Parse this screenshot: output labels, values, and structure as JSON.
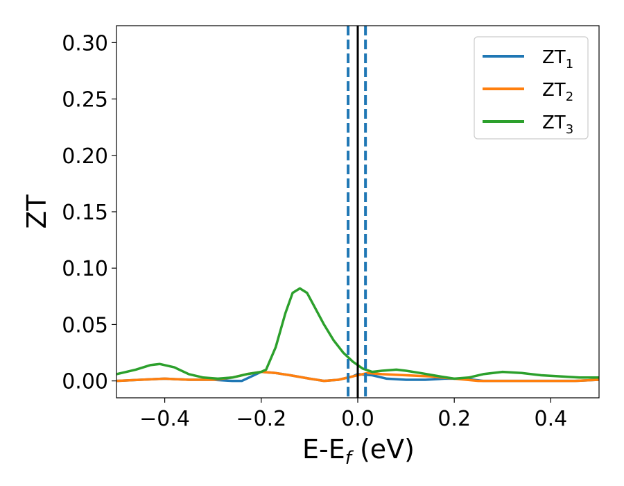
{
  "chart_data": {
    "type": "line",
    "xlabel_parts": {
      "main": "E-E",
      "sub": "f",
      "tail": " (eV)"
    },
    "ylabel": "ZT",
    "xlim": [
      -0.5,
      0.5
    ],
    "ylim": [
      -0.015,
      0.315
    ],
    "xticks": [
      -0.4,
      -0.2,
      0.0,
      0.2,
      0.4
    ],
    "xtick_labels": [
      "−0.4",
      "−0.2",
      "0.0",
      "0.2",
      "0.4"
    ],
    "yticks": [
      0.0,
      0.05,
      0.1,
      0.15,
      0.2,
      0.25,
      0.3
    ],
    "ytick_labels": [
      "0.00",
      "0.05",
      "0.10",
      "0.15",
      "0.20",
      "0.25",
      "0.30"
    ],
    "grid": false,
    "legend_placement": "top-right",
    "reference_lines": [
      {
        "x": -0.02,
        "style": "dashed",
        "color": "#1f77b4"
      },
      {
        "x": 0.0,
        "style": "solid",
        "color": "#000000"
      },
      {
        "x": 0.016,
        "style": "dashed",
        "color": "#1f77b4"
      }
    ],
    "series": [
      {
        "name": "ZT",
        "sub": "1",
        "color": "#1f77b4",
        "points": [
          [
            -0.5,
            0.0
          ],
          [
            -0.45,
            0.001
          ],
          [
            -0.4,
            0.002
          ],
          [
            -0.35,
            0.001
          ],
          [
            -0.3,
            0.001
          ],
          [
            -0.26,
            0.0
          ],
          [
            -0.24,
            0.0
          ],
          [
            -0.22,
            0.004
          ],
          [
            -0.2,
            0.008
          ],
          [
            -0.17,
            0.007
          ],
          [
            -0.14,
            0.005
          ],
          [
            -0.1,
            0.002
          ],
          [
            -0.07,
            0.0
          ],
          [
            -0.04,
            0.001
          ],
          [
            -0.01,
            0.004
          ],
          [
            0.0,
            0.006
          ],
          [
            0.03,
            0.005
          ],
          [
            0.06,
            0.002
          ],
          [
            0.1,
            0.001
          ],
          [
            0.14,
            0.001
          ],
          [
            0.18,
            0.002
          ],
          [
            0.22,
            0.002
          ],
          [
            0.26,
            0.0
          ],
          [
            0.3,
            0.0
          ],
          [
            0.35,
            0.0
          ],
          [
            0.4,
            0.0
          ],
          [
            0.45,
            0.0
          ],
          [
            0.5,
            0.001
          ]
        ]
      },
      {
        "name": "ZT",
        "sub": "2",
        "color": "#ff7f0e",
        "points": [
          [
            -0.5,
            0.0
          ],
          [
            -0.45,
            0.001
          ],
          [
            -0.4,
            0.002
          ],
          [
            -0.35,
            0.001
          ],
          [
            -0.3,
            0.001
          ],
          [
            -0.26,
            0.003
          ],
          [
            -0.23,
            0.006
          ],
          [
            -0.2,
            0.008
          ],
          [
            -0.17,
            0.007
          ],
          [
            -0.14,
            0.005
          ],
          [
            -0.1,
            0.002
          ],
          [
            -0.07,
            0.0
          ],
          [
            -0.04,
            0.001
          ],
          [
            -0.01,
            0.004
          ],
          [
            0.02,
            0.007
          ],
          [
            0.05,
            0.006
          ],
          [
            0.1,
            0.005
          ],
          [
            0.15,
            0.004
          ],
          [
            0.2,
            0.002
          ],
          [
            0.25,
            0.0
          ],
          [
            0.3,
            0.0
          ],
          [
            0.35,
            0.0
          ],
          [
            0.4,
            0.0
          ],
          [
            0.45,
            0.0
          ],
          [
            0.5,
            0.001
          ]
        ]
      },
      {
        "name": "ZT",
        "sub": "3",
        "color": "#2ca02c",
        "points": [
          [
            -0.5,
            0.006
          ],
          [
            -0.46,
            0.01
          ],
          [
            -0.43,
            0.014
          ],
          [
            -0.41,
            0.015
          ],
          [
            -0.38,
            0.012
          ],
          [
            -0.35,
            0.006
          ],
          [
            -0.32,
            0.003
          ],
          [
            -0.29,
            0.002
          ],
          [
            -0.26,
            0.003
          ],
          [
            -0.23,
            0.006
          ],
          [
            -0.2,
            0.008
          ],
          [
            -0.19,
            0.01
          ],
          [
            -0.17,
            0.03
          ],
          [
            -0.15,
            0.06
          ],
          [
            -0.135,
            0.078
          ],
          [
            -0.12,
            0.082
          ],
          [
            -0.105,
            0.078
          ],
          [
            -0.09,
            0.066
          ],
          [
            -0.07,
            0.05
          ],
          [
            -0.05,
            0.036
          ],
          [
            -0.03,
            0.025
          ],
          [
            -0.01,
            0.017
          ],
          [
            0.01,
            0.011
          ],
          [
            0.03,
            0.008
          ],
          [
            0.05,
            0.009
          ],
          [
            0.08,
            0.01
          ],
          [
            0.1,
            0.009
          ],
          [
            0.13,
            0.007
          ],
          [
            0.17,
            0.004
          ],
          [
            0.2,
            0.002
          ],
          [
            0.23,
            0.003
          ],
          [
            0.26,
            0.006
          ],
          [
            0.3,
            0.008
          ],
          [
            0.34,
            0.007
          ],
          [
            0.38,
            0.005
          ],
          [
            0.42,
            0.004
          ],
          [
            0.46,
            0.003
          ],
          [
            0.5,
            0.003
          ]
        ]
      }
    ]
  }
}
